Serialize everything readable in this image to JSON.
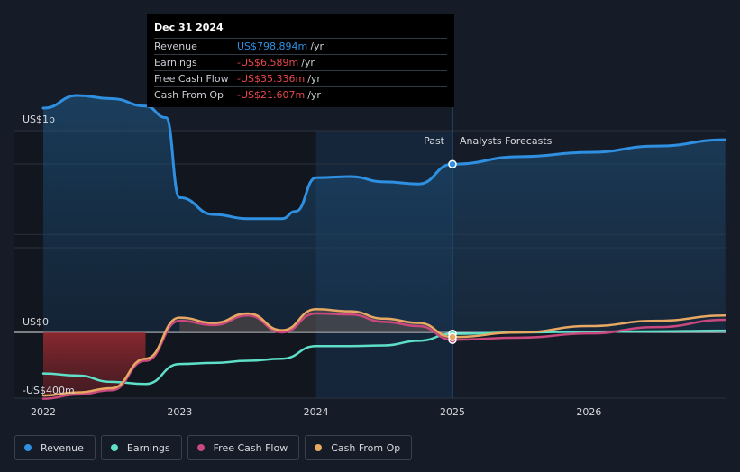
{
  "tooltip": {
    "date": "Dec 31 2024",
    "rows": [
      {
        "label": "Revenue",
        "value": "US$798.894m",
        "unit": "/yr",
        "color": "#2f8fe0"
      },
      {
        "label": "Earnings",
        "value": "-US$6.589m",
        "unit": "/yr",
        "color": "#e8474c"
      },
      {
        "label": "Free Cash Flow",
        "value": "-US$35.336m",
        "unit": "/yr",
        "color": "#e8474c"
      },
      {
        "label": "Cash From Op",
        "value": "-US$21.607m",
        "unit": "/yr",
        "color": "#e8474c"
      }
    ]
  },
  "legend": [
    {
      "label": "Revenue",
      "color": "#2f8fe0"
    },
    {
      "label": "Earnings",
      "color": "#5ee0c8"
    },
    {
      "label": "Free Cash Flow",
      "color": "#c9487e"
    },
    {
      "label": "Cash From Op",
      "color": "#e6a862"
    }
  ],
  "chart_data": {
    "type": "line",
    "title": "",
    "y_top_label": "US$1b",
    "y_zero_label": "US$0",
    "y_bottom_label": "-US$400m",
    "ylim": [
      -400,
      1200
    ],
    "xlim": [
      2022,
      2027
    ],
    "x_ticks": [
      {
        "value": 2022,
        "label": "2022"
      },
      {
        "value": 2023,
        "label": "2023"
      },
      {
        "value": 2024,
        "label": "2024"
      },
      {
        "value": 2025,
        "label": "2025"
      },
      {
        "value": 2026,
        "label": "2026"
      }
    ],
    "past_label": "Past",
    "forecast_label": "Analysts Forecasts",
    "divider_x": 2025,
    "highlight_start": 2024,
    "series": [
      {
        "name": "Revenue",
        "color": "#2f8fe0",
        "fill": true,
        "points": [
          [
            2022.0,
            1065
          ],
          [
            2022.25,
            1125
          ],
          [
            2022.5,
            1110
          ],
          [
            2022.75,
            1075
          ],
          [
            2022.9,
            1020
          ],
          [
            2023.0,
            640
          ],
          [
            2023.25,
            560
          ],
          [
            2023.5,
            540
          ],
          [
            2023.75,
            540
          ],
          [
            2023.85,
            575
          ],
          [
            2024.0,
            735
          ],
          [
            2024.25,
            740
          ],
          [
            2024.5,
            715
          ],
          [
            2024.75,
            705
          ],
          [
            2025.0,
            799
          ],
          [
            2025.5,
            835
          ],
          [
            2026.0,
            855
          ],
          [
            2026.5,
            885
          ],
          [
            2027.0,
            915
          ]
        ]
      },
      {
        "name": "Earnings",
        "color": "#5ee0c8",
        "fill": false,
        "points": [
          [
            2022.0,
            -195
          ],
          [
            2022.25,
            -205
          ],
          [
            2022.5,
            -235
          ],
          [
            2022.75,
            -245
          ],
          [
            2023.0,
            -150
          ],
          [
            2023.25,
            -145
          ],
          [
            2023.5,
            -135
          ],
          [
            2023.75,
            -125
          ],
          [
            2024.0,
            -65
          ],
          [
            2024.25,
            -65
          ],
          [
            2024.5,
            -62
          ],
          [
            2024.75,
            -40
          ],
          [
            2025.0,
            -7
          ],
          [
            2025.5,
            0
          ],
          [
            2026.0,
            3
          ],
          [
            2026.5,
            5
          ],
          [
            2027.0,
            8
          ]
        ]
      },
      {
        "name": "Free Cash Flow",
        "color": "#c9487e",
        "fill": false,
        "points": [
          [
            2022.0,
            -315
          ],
          [
            2022.25,
            -295
          ],
          [
            2022.5,
            -275
          ],
          [
            2022.75,
            -135
          ],
          [
            2023.0,
            55
          ],
          [
            2023.25,
            35
          ],
          [
            2023.5,
            80
          ],
          [
            2023.75,
            0
          ],
          [
            2024.0,
            90
          ],
          [
            2024.25,
            85
          ],
          [
            2024.5,
            50
          ],
          [
            2024.75,
            30
          ],
          [
            2025.0,
            -35
          ],
          [
            2025.5,
            -25
          ],
          [
            2026.0,
            -5
          ],
          [
            2026.5,
            25
          ],
          [
            2027.0,
            60
          ]
        ]
      },
      {
        "name": "Cash From Op",
        "color": "#e6a862",
        "fill": false,
        "points": [
          [
            2022.0,
            -300
          ],
          [
            2022.25,
            -285
          ],
          [
            2022.5,
            -265
          ],
          [
            2022.75,
            -125
          ],
          [
            2023.0,
            70
          ],
          [
            2023.25,
            45
          ],
          [
            2023.5,
            90
          ],
          [
            2023.75,
            10
          ],
          [
            2024.0,
            110
          ],
          [
            2024.25,
            100
          ],
          [
            2024.5,
            65
          ],
          [
            2024.75,
            45
          ],
          [
            2025.0,
            -22
          ],
          [
            2025.5,
            0
          ],
          [
            2026.0,
            30
          ],
          [
            2026.5,
            55
          ],
          [
            2027.0,
            80
          ]
        ]
      }
    ]
  }
}
